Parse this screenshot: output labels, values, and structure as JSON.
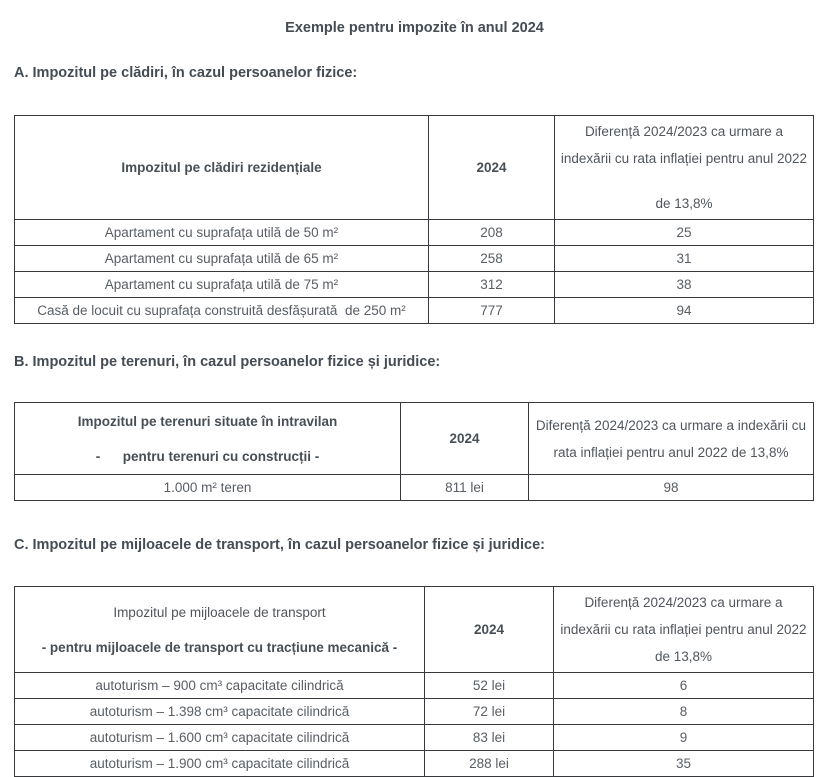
{
  "title": "Exemple pentru impozite în anul 2024",
  "section_a": {
    "heading": "A. Impozitul pe clădiri, în cazul persoanelor fizice:",
    "table": {
      "col_label": "Impozitul pe clădiri rezidențiale",
      "col_year": "2024",
      "col_diff_line1": "Diferență 2024/2023 ca urmare a indexării cu rata inflației pentru anul 2022",
      "col_diff_line2": "de 13,8%",
      "rows": [
        {
          "label": "Apartament cu suprafața utilă de 50 m²",
          "year": "208",
          "diff": "25"
        },
        {
          "label": "Apartament cu suprafața utilă de 65 m²",
          "year": "258",
          "diff": "31"
        },
        {
          "label": "Apartament cu suprafața utilă de 75 m²",
          "year": "312",
          "diff": "38"
        },
        {
          "label": "Casă de locuit cu suprafața construită desfășurată  de 250 m²",
          "year": "777",
          "diff": "94"
        }
      ]
    }
  },
  "section_b": {
    "heading": "B. Impozitul pe terenuri, în cazul persoanelor fizice și juridice:",
    "table": {
      "col_label_line1": "Impozitul pe terenuri situate în intravilan",
      "col_label_line2": "-      pentru terenuri cu construcții -",
      "col_year": "2024",
      "col_diff": "Diferență 2024/2023 ca urmare a indexării cu rata inflației pentru anul 2022 de 13,8%",
      "rows": [
        {
          "label": "1.000 m² teren",
          "year": "811 lei",
          "diff": "98"
        }
      ]
    }
  },
  "section_c": {
    "heading": "C. Impozitul pe mijloacele de transport, în cazul persoanelor fizice și juridice:",
    "table": {
      "col_label_line1": "Impozitul pe mijloacele de transport",
      "col_label_line2": "- pentru mijloacele de transport cu tracțiune mecanică -",
      "col_year": "2024",
      "col_diff": "Diferență 2024/2023 ca urmare a indexării cu rata inflației pentru anul 2022 de 13,8%",
      "rows": [
        {
          "label": "autoturism – 900 cm³ capacitate cilindrică",
          "year": "52 lei",
          "diff": "6"
        },
        {
          "label": "autoturism – 1.398 cm³ capacitate cilindrică",
          "year": "72 lei",
          "diff": "8"
        },
        {
          "label": "autoturism – 1.600 cm³ capacitate cilindrică",
          "year": "83 lei",
          "diff": "9"
        },
        {
          "label": "autoturism – 1.900 cm³ capacitate cilindrică",
          "year": "288 lei",
          "diff": "35"
        }
      ]
    }
  }
}
